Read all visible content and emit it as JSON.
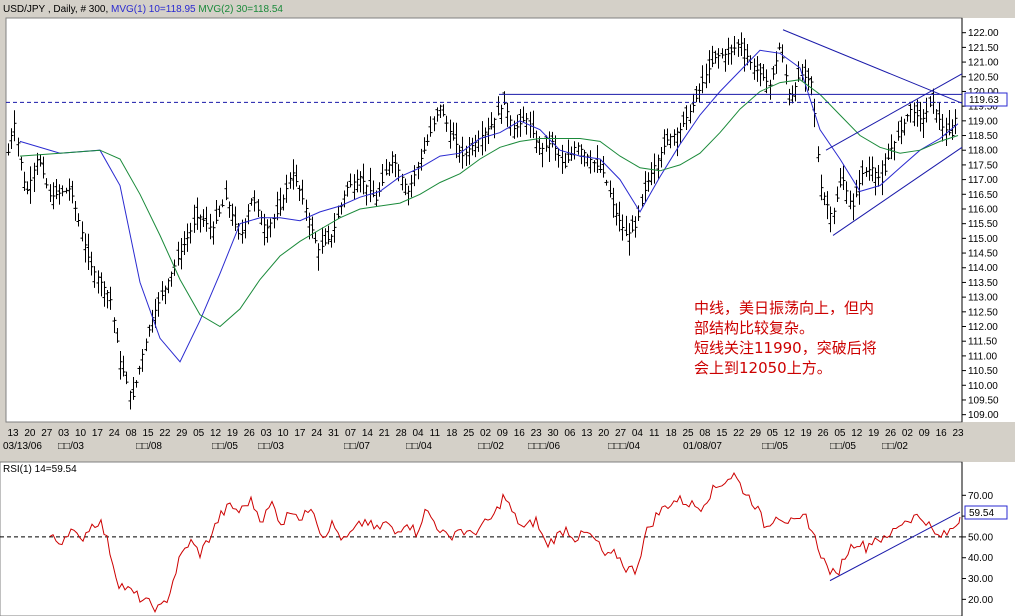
{
  "main_panel": {
    "header": {
      "symbol": "USD/JPY",
      "period": ", Daily, # 300,",
      "mvg1": "MVG(1) 10=118.95",
      "mvg2": "MVG(2) 30=118.54"
    },
    "price_label": "119.63",
    "annotation": [
      "中线，美日振荡向上，但内",
      "部结构比较复杂。",
      "短线关注11990，突破后将",
      "会上到12050上方。"
    ]
  },
  "rsi_panel": {
    "header": "RSI(1) 14=59.54",
    "value_label": "59.54"
  },
  "colors": {
    "background": "#ffffff",
    "frame": "#d4d0c8",
    "bars": "#000000",
    "mvg1": "#2a2ad0",
    "mvg2": "#1a8a3a",
    "trendline": "#1a1aaa",
    "rsi": "#cc0000",
    "annotation": "#cc0000"
  },
  "chart_data": [
    {
      "type": "ohlc",
      "ylim": [
        108.75,
        122.5
      ],
      "y_ticks": [
        "109.00",
        "109.50",
        "110.00",
        "110.50",
        "111.00",
        "111.50",
        "112.00",
        "112.50",
        "113.00",
        "113.50",
        "114.00",
        "114.50",
        "115.00",
        "115.50",
        "116.00",
        "116.50",
        "117.00",
        "117.50",
        "118.00",
        "118.50",
        "119.00",
        "119.50",
        "120.00",
        "120.50",
        "121.00",
        "121.50",
        "122.00"
      ],
      "x_labels": [
        "13",
        "20",
        "27",
        "03",
        "10",
        "17",
        "24",
        "08",
        "15",
        "22",
        "29",
        "05",
        "12",
        "19",
        "26",
        "03",
        "10",
        "17",
        "24",
        "31",
        "07",
        "14",
        "21",
        "28",
        "04",
        "11",
        "18",
        "25",
        "02",
        "09",
        "16",
        "23",
        "30",
        "06",
        "13",
        "20",
        "27",
        "04",
        "11",
        "18",
        "25",
        "08",
        "15",
        "22",
        "29",
        "05",
        "12",
        "19",
        "26",
        "05",
        "12",
        "19",
        "26",
        "02",
        "09",
        "16",
        "23"
      ],
      "x_sub_labels": [
        "03/13/06",
        "□□/03",
        "□□/08",
        "□□/05",
        "□□/03",
        "□□/07",
        "□□/04",
        "□□/02",
        "□□□/06",
        "□□□/04",
        "01/08/07",
        "□□/05",
        "□□/05",
        "□□/02"
      ],
      "anchors": [
        [
          0,
          116.5
        ],
        [
          14,
          119.0
        ],
        [
          26,
          116.5
        ],
        [
          38,
          117.8
        ],
        [
          50,
          116.4
        ],
        [
          70,
          116.7
        ],
        [
          90,
          114.1
        ],
        [
          110,
          113.0
        ],
        [
          120,
          110.8
        ],
        [
          132,
          109.5
        ],
        [
          142,
          111.0
        ],
        [
          152,
          112.3
        ],
        [
          166,
          113.4
        ],
        [
          180,
          114.5
        ],
        [
          198,
          115.8
        ],
        [
          212,
          115.3
        ],
        [
          226,
          116.4
        ],
        [
          240,
          115.0
        ],
        [
          252,
          116.4
        ],
        [
          266,
          115.3
        ],
        [
          280,
          116.0
        ],
        [
          292,
          117.3
        ],
        [
          304,
          116.2
        ],
        [
          318,
          114.6
        ],
        [
          332,
          115.1
        ],
        [
          346,
          116.7
        ],
        [
          360,
          117.1
        ],
        [
          376,
          116.3
        ],
        [
          392,
          117.8
        ],
        [
          408,
          116.6
        ],
        [
          424,
          118.0
        ],
        [
          440,
          119.5
        ],
        [
          450,
          118.6
        ],
        [
          462,
          117.8
        ],
        [
          476,
          118.3
        ],
        [
          490,
          118.8
        ],
        [
          504,
          119.6
        ],
        [
          514,
          118.7
        ],
        [
          526,
          119.1
        ],
        [
          540,
          118.0
        ],
        [
          552,
          118.3
        ],
        [
          564,
          117.4
        ],
        [
          576,
          118.2
        ],
        [
          590,
          117.7
        ],
        [
          604,
          117.2
        ],
        [
          614,
          116.0
        ],
        [
          626,
          115.1
        ],
        [
          636,
          115.4
        ],
        [
          646,
          116.8
        ],
        [
          656,
          117.6
        ],
        [
          668,
          118.4
        ],
        [
          680,
          118.7
        ],
        [
          694,
          119.6
        ],
        [
          706,
          120.6
        ],
        [
          716,
          121.2
        ],
        [
          730,
          121.3
        ],
        [
          740,
          121.7
        ],
        [
          750,
          121.0
        ],
        [
          760,
          120.6
        ],
        [
          770,
          120.2
        ],
        [
          780,
          121.6
        ],
        [
          790,
          119.7
        ],
        [
          800,
          120.6
        ],
        [
          812,
          120.3
        ],
        [
          820,
          116.8
        ],
        [
          832,
          115.7
        ],
        [
          842,
          117.1
        ],
        [
          852,
          116.0
        ],
        [
          862,
          117.2
        ],
        [
          872,
          117.4
        ],
        [
          882,
          116.9
        ],
        [
          890,
          118.0
        ],
        [
          900,
          118.6
        ],
        [
          910,
          119.4
        ],
        [
          922,
          119.0
        ],
        [
          932,
          119.7
        ],
        [
          942,
          118.8
        ],
        [
          952,
          118.5
        ],
        [
          958,
          119.6
        ]
      ],
      "mvg1_anchors": [
        [
          20,
          118.3
        ],
        [
          60,
          117.9
        ],
        [
          100,
          118.0
        ],
        [
          120,
          116.8
        ],
        [
          140,
          113.5
        ],
        [
          160,
          111.6
        ],
        [
          180,
          110.8
        ],
        [
          200,
          112.2
        ],
        [
          220,
          113.8
        ],
        [
          240,
          115.5
        ],
        [
          260,
          115.7
        ],
        [
          280,
          115.7
        ],
        [
          300,
          115.6
        ],
        [
          320,
          115.9
        ],
        [
          340,
          116.1
        ],
        [
          360,
          116.4
        ],
        [
          380,
          116.6
        ],
        [
          400,
          117.1
        ],
        [
          420,
          117.4
        ],
        [
          440,
          117.8
        ],
        [
          460,
          117.9
        ],
        [
          480,
          118.4
        ],
        [
          500,
          118.6
        ],
        [
          520,
          119.0
        ],
        [
          540,
          118.7
        ],
        [
          560,
          118.0
        ],
        [
          580,
          117.8
        ],
        [
          600,
          117.7
        ],
        [
          620,
          117.0
        ],
        [
          640,
          115.9
        ],
        [
          660,
          117.1
        ],
        [
          680,
          118.2
        ],
        [
          700,
          119.2
        ],
        [
          720,
          120.0
        ],
        [
          740,
          120.7
        ],
        [
          760,
          121.4
        ],
        [
          780,
          121.3
        ],
        [
          800,
          120.8
        ],
        [
          820,
          118.7
        ],
        [
          840,
          117.7
        ],
        [
          860,
          116.6
        ],
        [
          880,
          116.8
        ],
        [
          900,
          117.4
        ],
        [
          920,
          118.0
        ],
        [
          940,
          118.4
        ],
        [
          958,
          118.9
        ]
      ],
      "mvg2_anchors": [
        [
          20,
          117.8
        ],
        [
          60,
          117.9
        ],
        [
          100,
          118.0
        ],
        [
          120,
          117.7
        ],
        [
          140,
          116.5
        ],
        [
          160,
          115.1
        ],
        [
          180,
          113.6
        ],
        [
          200,
          112.4
        ],
        [
          220,
          112.0
        ],
        [
          240,
          112.6
        ],
        [
          260,
          113.6
        ],
        [
          280,
          114.4
        ],
        [
          300,
          114.9
        ],
        [
          320,
          115.3
        ],
        [
          340,
          115.7
        ],
        [
          360,
          116.0
        ],
        [
          380,
          116.1
        ],
        [
          400,
          116.2
        ],
        [
          420,
          116.5
        ],
        [
          440,
          116.9
        ],
        [
          460,
          117.2
        ],
        [
          480,
          117.7
        ],
        [
          500,
          118.1
        ],
        [
          520,
          118.3
        ],
        [
          540,
          118.4
        ],
        [
          560,
          118.4
        ],
        [
          580,
          118.4
        ],
        [
          600,
          118.3
        ],
        [
          620,
          117.8
        ],
        [
          640,
          117.4
        ],
        [
          660,
          117.3
        ],
        [
          680,
          117.5
        ],
        [
          700,
          117.9
        ],
        [
          720,
          118.6
        ],
        [
          740,
          119.4
        ],
        [
          760,
          120.0
        ],
        [
          780,
          120.3
        ],
        [
          800,
          120.4
        ],
        [
          820,
          119.9
        ],
        [
          840,
          119.2
        ],
        [
          860,
          118.5
        ],
        [
          880,
          118.1
        ],
        [
          900,
          117.9
        ],
        [
          920,
          118.0
        ],
        [
          940,
          118.3
        ],
        [
          958,
          118.5
        ]
      ],
      "lines": [
        {
          "kind": "dashed",
          "y1": 119.63,
          "y2": 119.63
        },
        {
          "kind": "solid",
          "x1": 499,
          "y1": 119.9,
          "x2": 962,
          "y2": 119.9
        },
        {
          "kind": "solid",
          "x1": 783,
          "y1": 122.1,
          "x2": 962,
          "y2": 119.6
        },
        {
          "kind": "solid",
          "x1": 826,
          "y1": 118.0,
          "x2": 962,
          "y2": 120.6
        },
        {
          "kind": "solid",
          "x1": 833,
          "y1": 115.1,
          "x2": 962,
          "y2": 118.1
        }
      ]
    },
    {
      "type": "line",
      "ylim": [
        12,
        86
      ],
      "y_ticks": [
        "20.00",
        "30.00",
        "40.00",
        "50.00",
        "60.00",
        "70.00"
      ],
      "value": 59.54,
      "dashed_level": 50,
      "anchors": [
        [
          50,
          50
        ],
        [
          60,
          47
        ],
        [
          70,
          54
        ],
        [
          80,
          48
        ],
        [
          90,
          55
        ],
        [
          100,
          58
        ],
        [
          108,
          47
        ],
        [
          118,
          28
        ],
        [
          130,
          24
        ],
        [
          145,
          19
        ],
        [
          160,
          15
        ],
        [
          168,
          21
        ],
        [
          180,
          40
        ],
        [
          190,
          48
        ],
        [
          200,
          42
        ],
        [
          210,
          50
        ],
        [
          220,
          60
        ],
        [
          230,
          65
        ],
        [
          240,
          62
        ],
        [
          250,
          68
        ],
        [
          262,
          58
        ],
        [
          272,
          66
        ],
        [
          282,
          56
        ],
        [
          292,
          64
        ],
        [
          302,
          58
        ],
        [
          312,
          66
        ],
        [
          322,
          50
        ],
        [
          332,
          56
        ],
        [
          344,
          48
        ],
        [
          356,
          54
        ],
        [
          366,
          58
        ],
        [
          376,
          53
        ],
        [
          386,
          57
        ],
        [
          396,
          51
        ],
        [
          406,
          58
        ],
        [
          416,
          52
        ],
        [
          426,
          63
        ],
        [
          436,
          56
        ],
        [
          448,
          49
        ],
        [
          458,
          54
        ],
        [
          470,
          51
        ],
        [
          482,
          55
        ],
        [
          494,
          60
        ],
        [
          504,
          70
        ],
        [
          514,
          60
        ],
        [
          524,
          54
        ],
        [
          536,
          58
        ],
        [
          546,
          46
        ],
        [
          556,
          50
        ],
        [
          566,
          54
        ],
        [
          576,
          49
        ],
        [
          586,
          52
        ],
        [
          596,
          48
        ],
        [
          606,
          40
        ],
        [
          616,
          42
        ],
        [
          626,
          35
        ],
        [
          636,
          34
        ],
        [
          646,
          52
        ],
        [
          656,
          60
        ],
        [
          666,
          65
        ],
        [
          678,
          68
        ],
        [
          690,
          66
        ],
        [
          700,
          64
        ],
        [
          712,
          72
        ],
        [
          722,
          76
        ],
        [
          734,
          80
        ],
        [
          744,
          72
        ],
        [
          756,
          65
        ],
        [
          766,
          54
        ],
        [
          776,
          61
        ],
        [
          786,
          58
        ],
        [
          796,
          56
        ],
        [
          806,
          60
        ],
        [
          816,
          48
        ],
        [
          826,
          36
        ],
        [
          836,
          31
        ],
        [
          846,
          42
        ],
        [
          856,
          48
        ],
        [
          866,
          45
        ],
        [
          876,
          50
        ],
        [
          886,
          48
        ],
        [
          896,
          55
        ],
        [
          906,
          58
        ],
        [
          916,
          60
        ],
        [
          926,
          58
        ],
        [
          936,
          50
        ],
        [
          946,
          51
        ],
        [
          956,
          56
        ],
        [
          960,
          59.5
        ]
      ],
      "trendline": {
        "x1": 830,
        "y1": 29,
        "x2": 960,
        "y2": 62
      }
    }
  ]
}
